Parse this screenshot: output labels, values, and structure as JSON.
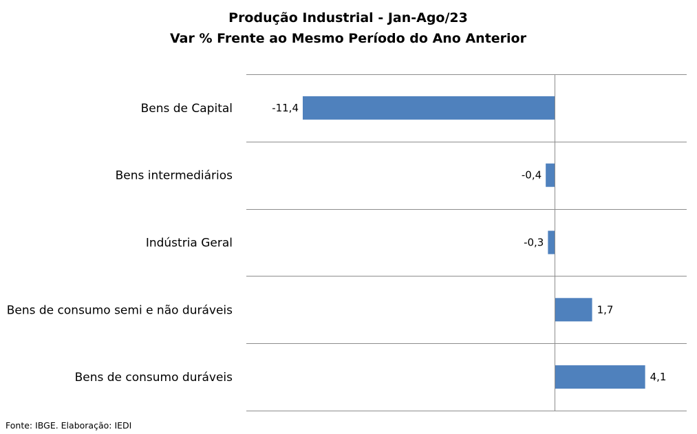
{
  "chart_data": {
    "type": "bar",
    "orientation": "horizontal",
    "title": "Produção Industrial - Jan-Ago/23",
    "subtitle": "Var % Frente ao Mesmo Período do Ano Anterior",
    "categories": [
      "Bens de Capital",
      "Bens intermediários",
      "Indústria Geral",
      "Bens de consumo semi e não duráveis",
      "Bens de consumo duráveis"
    ],
    "values": [
      -11.4,
      -0.4,
      -0.3,
      1.7,
      4.1
    ],
    "data_labels": [
      "-11,4",
      "-0,4",
      "-0,3",
      "1,7",
      "4,1"
    ],
    "xlim": [
      -14,
      6
    ],
    "bar_color": "#4f81bd",
    "gridlines": "horizontal category separators",
    "legend": "none"
  },
  "footer": {
    "source": "Fonte: IBGE. Elaboração: IEDI"
  }
}
